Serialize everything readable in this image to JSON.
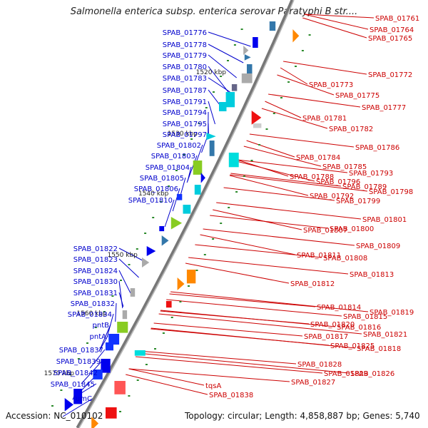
{
  "title": "Salmonella enterica subsp. enterica serovar Paratyphi B str....",
  "accession": "Accession: NC_010102",
  "summary": "Topology: circular; Length: 4,858,887 bp; Genes: 5,740",
  "colors": {
    "left_labels": "#0000cc",
    "right_labels": "#cc0000",
    "backbone": "#777777",
    "tick": "#2a8a2a"
  },
  "kbp_ticks": [
    "1520 kbp",
    "1530 kbp",
    "1540 kbp",
    "1550 kbp",
    "1560 kbp",
    "1570 kbp"
  ],
  "left_labels": [
    "SPAB_01776",
    "SPAB_01778",
    "SPAB_01779",
    "SPAB_01780",
    "SPAB_01783",
    "SPAB_01787",
    "SPAB_01791",
    "SPAB_01794",
    "SPAB_01795",
    "SPAB_01797",
    "SPAB_01802",
    "SPAB_01803",
    "SPAB_01804",
    "SPAB_01805",
    "SPAB_01806",
    "SPAB_01810",
    "SPAB_01822",
    "SPAB_01823",
    "SPAB_01824",
    "SPAB_01830",
    "SPAB_01831",
    "SPAB_01832",
    "SPAB_01834",
    "pntB",
    "pntA",
    "SPAB_01837",
    "SPAB_01839",
    "SPAB_01842",
    "SPAB_01845",
    "fumC"
  ],
  "right_labels": [
    "SPAB_01761",
    "SPAB_01764",
    "SPAB_01765",
    "SPAB_01772",
    "SPAB_01773",
    "SPAB_01775",
    "SPAB_01777",
    "SPAB_01781",
    "SPAB_01782",
    "SPAB_01786",
    "SPAB_01784",
    "SPAB_01785",
    "SPAB_01793",
    "SPAB_01788",
    "SPAB_01796",
    "SPAB_01789",
    "SPAB_01798",
    "SPAB_01792",
    "SPAB_01799",
    "SPAB_01801",
    "SPAB_01807",
    "SPAB_01800",
    "SPAB_01809",
    "SPAB_01811",
    "SPAB_01808",
    "SPAB_01813",
    "SPAB_01812",
    "SPAB_01814",
    "SPAB_01815",
    "SPAB_01819",
    "SPAB_01820",
    "SPAB_01816",
    "SPAB_01821",
    "SPAB_01817",
    "SPAB_01825",
    "SPAB_01818",
    "SPAB_01828",
    "SPAB_01829",
    "SPAB_01826",
    "SPAB_01827",
    "tqsA",
    "SPAB_01838"
  ]
}
